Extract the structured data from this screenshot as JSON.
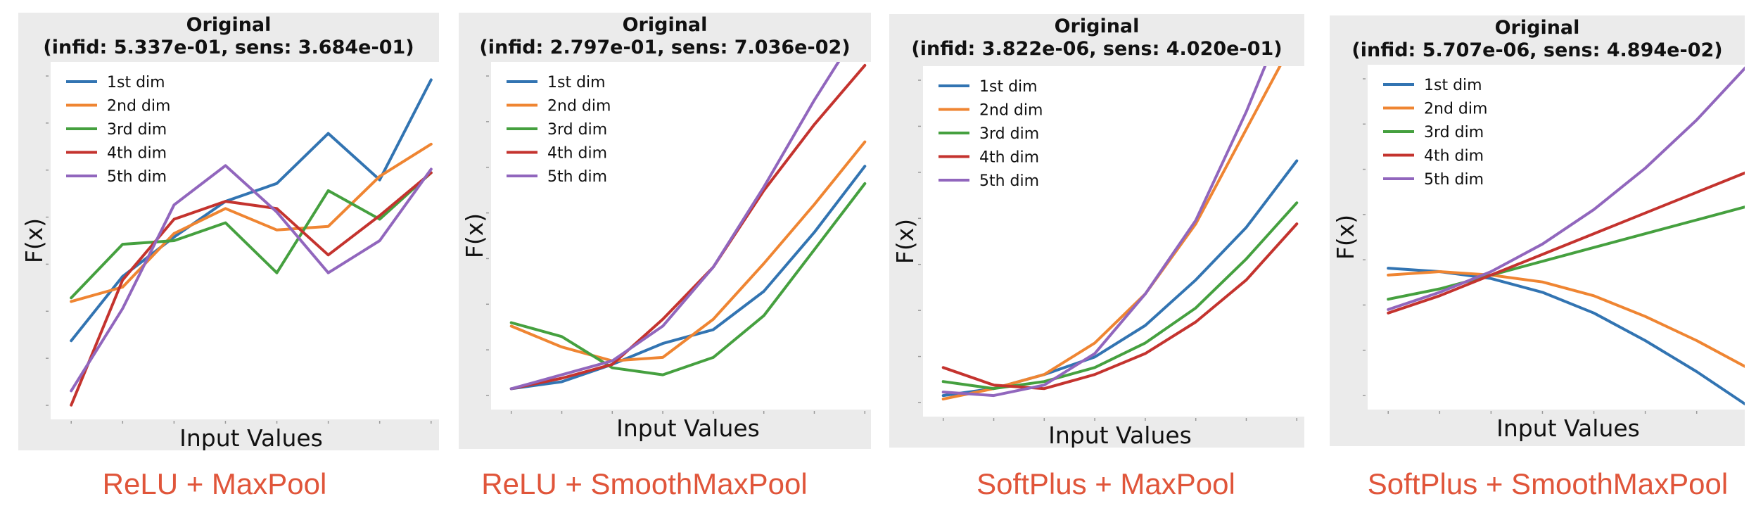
{
  "series_names": [
    "1st dim",
    "2nd dim",
    "3rd dim",
    "4th dim",
    "5th dim"
  ],
  "series_colors": [
    "#3274b2",
    "#ef8532",
    "#45a03f",
    "#c4332e",
    "#9166bd"
  ],
  "chart_data": [
    {
      "type": "line",
      "title": "Original",
      "subtitle": "(infid: 5.337e-01, sens: 3.684e-01)",
      "xlabel": "Input Values",
      "ylabel": "F(x)",
      "caption": "ReLU + MaxPool",
      "x": [
        0,
        1,
        2,
        3,
        4,
        5,
        6,
        7
      ],
      "xlim": [
        -0.4,
        7.4
      ],
      "ylim": [
        0,
        1
      ],
      "grid": false,
      "legend": "top-left",
      "series": [
        {
          "name": "1st dim",
          "values": [
            0.22,
            0.4,
            0.51,
            0.61,
            0.66,
            0.8,
            0.67,
            0.95
          ]
        },
        {
          "name": "2nd dim",
          "values": [
            0.33,
            0.37,
            0.52,
            0.59,
            0.53,
            0.54,
            0.68,
            0.77
          ]
        },
        {
          "name": "3rd dim",
          "values": [
            0.34,
            0.49,
            0.5,
            0.55,
            0.41,
            0.64,
            0.56,
            0.69
          ]
        },
        {
          "name": "4th dim",
          "values": [
            0.04,
            0.39,
            0.56,
            0.61,
            0.59,
            0.46,
            0.57,
            0.69
          ]
        },
        {
          "name": "5th dim",
          "values": [
            0.08,
            0.31,
            0.6,
            0.71,
            0.58,
            0.41,
            0.5,
            0.7
          ]
        }
      ]
    },
    {
      "type": "line",
      "title": "Original",
      "subtitle": "(infid: 2.797e-01, sens: 7.036e-02)",
      "xlabel": "Input Values",
      "ylabel": "F(x)",
      "caption": "ReLU + SmoothMaxPool",
      "x": [
        0,
        1,
        2,
        3,
        4,
        5,
        6,
        7
      ],
      "xlim": [
        -0.4,
        7.4
      ],
      "ylim": [
        0,
        1
      ],
      "grid": false,
      "legend": "top-left",
      "series": [
        {
          "name": "1st dim",
          "values": [
            0.06,
            0.08,
            0.13,
            0.19,
            0.23,
            0.34,
            0.51,
            0.7
          ]
        },
        {
          "name": "2nd dim",
          "values": [
            0.24,
            0.18,
            0.14,
            0.15,
            0.26,
            0.42,
            0.59,
            0.77
          ]
        },
        {
          "name": "3rd dim",
          "values": [
            0.25,
            0.21,
            0.12,
            0.1,
            0.15,
            0.27,
            0.46,
            0.65
          ]
        },
        {
          "name": "4th dim",
          "values": [
            0.06,
            0.09,
            0.13,
            0.26,
            0.41,
            0.63,
            0.82,
            0.99
          ]
        },
        {
          "name": "5th dim",
          "values": [
            0.06,
            0.1,
            0.14,
            0.24,
            0.41,
            0.64,
            0.89,
            1.12
          ]
        }
      ]
    },
    {
      "type": "line",
      "title": "Original",
      "subtitle": "(infid: 3.822e-06, sens: 4.020e-01)",
      "xlabel": "Input Values",
      "ylabel": "F(x)",
      "caption": "SoftPlus + MaxPool",
      "x": [
        0,
        1,
        2,
        3,
        4,
        5,
        6,
        7
      ],
      "xlim": [
        -0.4,
        7.4
      ],
      "ylim": [
        0,
        1
      ],
      "grid": false,
      "legend": "top-left",
      "series": [
        {
          "name": "1st dim",
          "values": [
            0.06,
            0.08,
            0.12,
            0.17,
            0.26,
            0.39,
            0.54,
            0.73
          ]
        },
        {
          "name": "2nd dim",
          "values": [
            0.05,
            0.08,
            0.12,
            0.21,
            0.35,
            0.55,
            0.82,
            1.09
          ]
        },
        {
          "name": "3rd dim",
          "values": [
            0.1,
            0.08,
            0.1,
            0.14,
            0.21,
            0.31,
            0.45,
            0.61
          ]
        },
        {
          "name": "4th dim",
          "values": [
            0.14,
            0.09,
            0.08,
            0.12,
            0.18,
            0.27,
            0.39,
            0.55
          ]
        },
        {
          "name": "5th dim",
          "values": [
            0.07,
            0.06,
            0.09,
            0.18,
            0.35,
            0.56,
            0.87,
            1.22
          ]
        }
      ]
    },
    {
      "type": "line",
      "title": "Original",
      "subtitle": "(infid: 5.707e-06, sens: 4.894e-02)",
      "xlabel": "Input Values",
      "ylabel": "F(x)",
      "caption": "SoftPlus + SmoothMaxPool",
      "x": [
        0,
        1,
        2,
        3,
        4,
        5,
        6,
        7
      ],
      "xlim": [
        -0.4,
        7.4
      ],
      "ylim": [
        0,
        1
      ],
      "grid": false,
      "legend": "top-left",
      "series": [
        {
          "name": "1st dim",
          "values": [
            0.41,
            0.4,
            0.38,
            0.34,
            0.28,
            0.2,
            0.11,
            0.01
          ]
        },
        {
          "name": "2nd dim",
          "values": [
            0.39,
            0.4,
            0.39,
            0.37,
            0.33,
            0.27,
            0.2,
            0.12
          ]
        },
        {
          "name": "3rd dim",
          "values": [
            0.32,
            0.35,
            0.39,
            0.43,
            0.47,
            0.51,
            0.55,
            0.59
          ]
        },
        {
          "name": "4th dim",
          "values": [
            0.28,
            0.33,
            0.39,
            0.45,
            0.51,
            0.57,
            0.63,
            0.69
          ]
        },
        {
          "name": "5th dim",
          "values": [
            0.29,
            0.34,
            0.4,
            0.48,
            0.58,
            0.7,
            0.84,
            1.0
          ]
        }
      ]
    }
  ]
}
